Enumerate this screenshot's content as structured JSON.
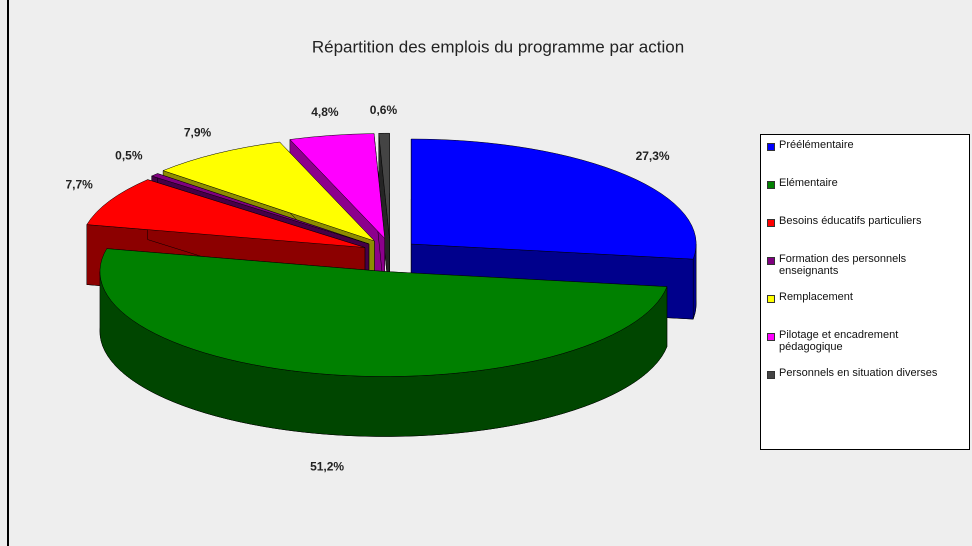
{
  "chart_data": {
    "type": "pie",
    "title": "Répartition des emplois du programme par action",
    "categories": [
      "Préélémentaire",
      "Elémentaire",
      "Besoins éducatifs particuliers",
      "Formation des personnels enseignants",
      "Remplacement",
      "Pilotage et encadrement pédagogique",
      "Personnels en situation diverses"
    ],
    "values": [
      27.3,
      51.2,
      7.7,
      0.5,
      7.9,
      4.8,
      0.6
    ],
    "value_labels": [
      "27,3%",
      "51,2%",
      "7,7%",
      "0,5%",
      "7,9%",
      "4,8%",
      "0,6%"
    ],
    "colors": [
      "#0000ff",
      "#008000",
      "#ff0000",
      "#800080",
      "#ffff00",
      "#ff00ff",
      "#444444"
    ],
    "legend": "right"
  }
}
